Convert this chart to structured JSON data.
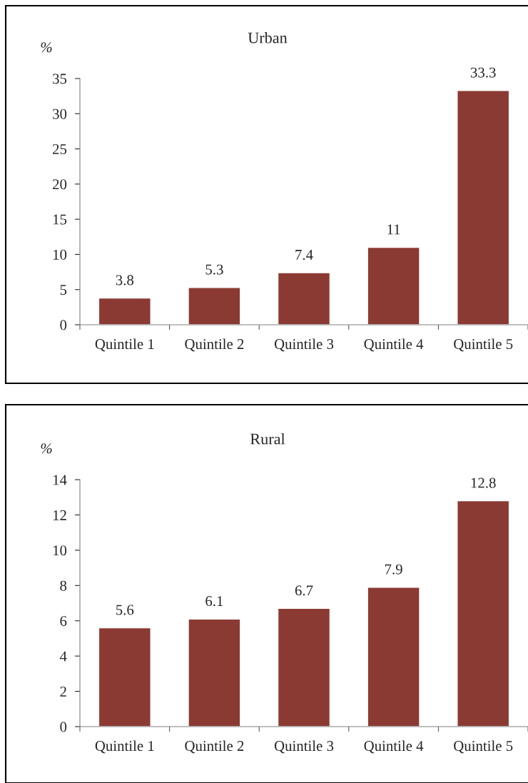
{
  "chart_data": [
    {
      "type": "bar",
      "title": "Urban",
      "ylabel": "%",
      "categories": [
        "Quintile 1",
        "Quintile 2",
        "Quintile 3",
        "Quintile 4",
        "Quintile 5"
      ],
      "values": [
        3.8,
        5.3,
        7.4,
        11,
        33.3
      ],
      "color": "#8b3a33",
      "ylim": [
        0,
        35
      ],
      "yticks": [
        0,
        5,
        10,
        15,
        20,
        25,
        30,
        35
      ],
      "data_labels": true,
      "grid": false,
      "legend": false
    },
    {
      "type": "bar",
      "title": "Rural",
      "ylabel": "%",
      "categories": [
        "Quintile 1",
        "Quintile 2",
        "Quintile 3",
        "Quintile 4",
        "Quintile 5"
      ],
      "values": [
        5.6,
        6.1,
        6.7,
        7.9,
        12.8
      ],
      "color": "#8b3a33",
      "ylim": [
        0,
        14
      ],
      "yticks": [
        0,
        2,
        4,
        6,
        8,
        10,
        12,
        14
      ],
      "data_labels": true,
      "grid": false,
      "legend": false
    }
  ]
}
